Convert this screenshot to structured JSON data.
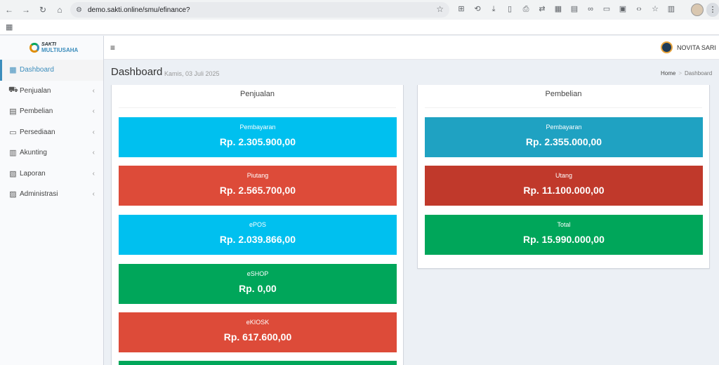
{
  "browser": {
    "url": "demo.sakti.online/smu/efinance?"
  },
  "app": {
    "logo_line1": "SAKTI",
    "logo_line2": "MULTIUSAHA",
    "user_name": "NOVITA SARI"
  },
  "sidebar": {
    "items": [
      {
        "label": "Dashboard",
        "icon": "dashboard-icon"
      },
      {
        "label": "Penjualan",
        "icon": "cart-icon"
      },
      {
        "label": "Pembelian",
        "icon": "document-icon"
      },
      {
        "label": "Persediaan",
        "icon": "inventory-icon"
      },
      {
        "label": "Akunting",
        "icon": "accounting-icon"
      },
      {
        "label": "Laporan",
        "icon": "report-icon"
      },
      {
        "label": "Administrasi",
        "icon": "admin-icon"
      }
    ]
  },
  "header": {
    "title": "Dashboard",
    "date": "Kamis, 03 Juli 2025",
    "breadcrumb_home": "Home",
    "breadcrumb_current": "Dashboard"
  },
  "penjualan": {
    "title": "Penjualan",
    "tiles": [
      {
        "label": "Pembayaran",
        "value": "Rp. 2.305.900,00",
        "color": "#00c0ef"
      },
      {
        "label": "Piutang",
        "value": "Rp. 2.565.700,00",
        "color": "#dd4b39"
      },
      {
        "label": "ePOS",
        "value": "Rp. 2.039.866,00",
        "color": "#00c0ef"
      },
      {
        "label": "eSHOP",
        "value": "Rp. 0,00",
        "color": "#00a65a"
      },
      {
        "label": "eKIOSK",
        "value": "Rp. 617.600,00",
        "color": "#dd4b39"
      }
    ]
  },
  "pembelian": {
    "title": "Pembelian",
    "tiles": [
      {
        "label": "Pembayaran",
        "value": "Rp. 2.355.000,00",
        "color": "#1fa2c2"
      },
      {
        "label": "Utang",
        "value": "Rp. 11.100.000,00",
        "color": "#c0392b"
      },
      {
        "label": "Total",
        "value": "Rp. 15.990.000,00",
        "color": "#00a65a"
      }
    ]
  },
  "colors": {
    "accent": "#3c8dbc",
    "partial_tile": "#00a65a"
  }
}
